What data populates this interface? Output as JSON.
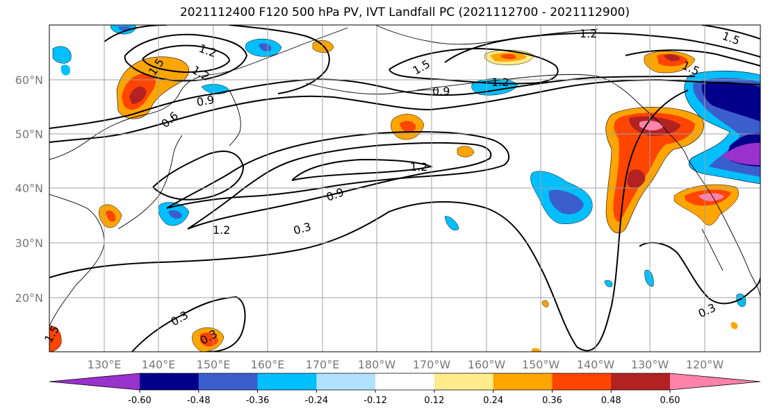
{
  "title": "2021112400 F120 500 hPa PV, IVT Landfall PC (2021112700 - 2021112900)",
  "latitude_labels": [
    "60°N",
    "50°N",
    "40°N",
    "30°N",
    "20°N"
  ],
  "longitude_labels": [
    "130°E",
    "140°E",
    "150°E",
    "160°E",
    "170°E",
    "180°W",
    "170°W",
    "160°W",
    "150°W",
    "140°W",
    "130°W",
    "120°W"
  ],
  "contour_labels": [
    "1.2",
    "1.2",
    "1.5",
    "1.5",
    "1.5",
    "1.2",
    "1.2",
    "1.5",
    "0.9",
    "0.9",
    "0.6",
    "1.2",
    "0.9",
    "1.2",
    "0.3",
    "0.3",
    "0.3",
    "0.3",
    "1.5"
  ],
  "colorbar": {
    "tick_labels": [
      "-0.60",
      "-0.48",
      "-0.36",
      "-0.24",
      "-0.12",
      "0.12",
      "0.24",
      "0.36",
      "0.48",
      "0.60"
    ],
    "colors": [
      "#9932cc",
      "#00008b",
      "#3a5fcd",
      "#00bfff",
      "#b0e2ff",
      "#ffffff",
      "#ffec8b",
      "#ffa500",
      "#ff4500",
      "#b22222",
      "#ff82ab"
    ]
  }
}
